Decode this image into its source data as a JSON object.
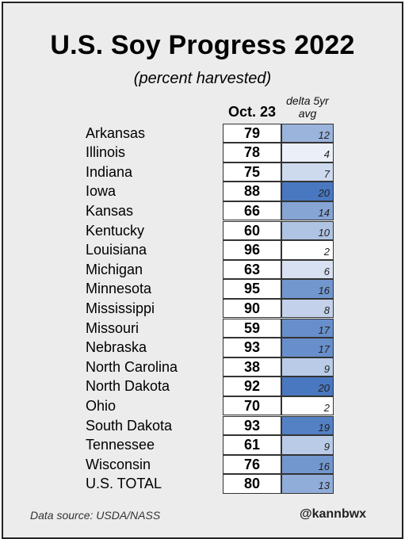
{
  "chart_data": {
    "type": "table",
    "title": "U.S. Soy Progress 2022",
    "subtitle": "(percent harvested)",
    "columns": [
      "Oct. 23",
      "delta 5yr avg"
    ],
    "rows": [
      {
        "state": "Arkansas",
        "value": 79,
        "delta": 12
      },
      {
        "state": "Illinois",
        "value": 78,
        "delta": 4
      },
      {
        "state": "Indiana",
        "value": 75,
        "delta": 7
      },
      {
        "state": "Iowa",
        "value": 88,
        "delta": 20
      },
      {
        "state": "Kansas",
        "value": 66,
        "delta": 14
      },
      {
        "state": "Kentucky",
        "value": 60,
        "delta": 10
      },
      {
        "state": "Louisiana",
        "value": 96,
        "delta": 2
      },
      {
        "state": "Michigan",
        "value": 63,
        "delta": 6
      },
      {
        "state": "Minnesota",
        "value": 95,
        "delta": 16
      },
      {
        "state": "Mississippi",
        "value": 90,
        "delta": 8
      },
      {
        "state": "Missouri",
        "value": 59,
        "delta": 17
      },
      {
        "state": "Nebraska",
        "value": 93,
        "delta": 17
      },
      {
        "state": "North Carolina",
        "value": 38,
        "delta": 9
      },
      {
        "state": "North Dakota",
        "value": 92,
        "delta": 20
      },
      {
        "state": "Ohio",
        "value": 70,
        "delta": 2
      },
      {
        "state": "South Dakota",
        "value": 93,
        "delta": 19
      },
      {
        "state": "Tennessee",
        "value": 61,
        "delta": 9
      },
      {
        "state": "Wisconsin",
        "value": 76,
        "delta": 16
      },
      {
        "state": "U.S. TOTAL",
        "value": 80,
        "delta": 13
      }
    ],
    "delta_color_low": "#ffffff",
    "delta_color_high": "#4a78c0"
  },
  "footer": {
    "source": "Data source: USDA/NASS",
    "handle": "@kannbwx"
  }
}
